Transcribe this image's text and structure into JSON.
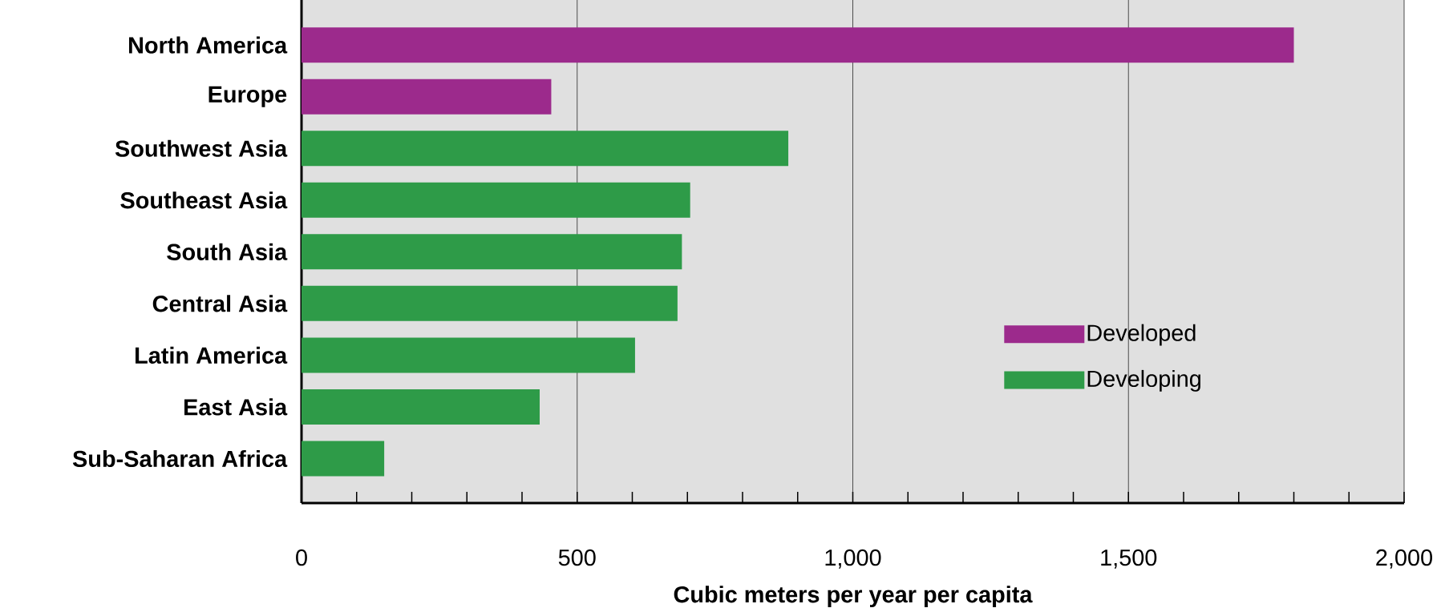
{
  "chart_data": {
    "type": "bar",
    "orientation": "horizontal",
    "stacked": false,
    "categories": [
      "North America",
      "Europe",
      "Southwest Asia",
      "Southeast Asia",
      "South Asia",
      "Central Asia",
      "Latin America",
      "East Asia",
      "Sub-Saharan Africa"
    ],
    "series": [
      {
        "name": "Developed",
        "color": "#9c2a8c",
        "values": [
          1800,
          453,
          null,
          null,
          null,
          null,
          null,
          null,
          null
        ]
      },
      {
        "name": "Developing",
        "color": "#2e9b48",
        "values": [
          null,
          null,
          883,
          705,
          690,
          682,
          605,
          432,
          150
        ]
      }
    ],
    "xlabel": "Cubic meters per year per capita",
    "xlim": [
      0,
      2000
    ],
    "xticks": [
      {
        "value": 0,
        "label": "0"
      },
      {
        "value": 100,
        "label": null
      },
      {
        "value": 200,
        "label": null
      },
      {
        "value": 300,
        "label": null
      },
      {
        "value": 400,
        "label": null
      },
      {
        "value": 500,
        "label": "500"
      },
      {
        "value": 600,
        "label": null
      },
      {
        "value": 700,
        "label": null
      },
      {
        "value": 800,
        "label": null
      },
      {
        "value": 900,
        "label": null
      },
      {
        "value": 1000,
        "label": "1,000"
      },
      {
        "value": 1100,
        "label": null
      },
      {
        "value": 1200,
        "label": null
      },
      {
        "value": 1300,
        "label": null
      },
      {
        "value": 1400,
        "label": null
      },
      {
        "value": 1500,
        "label": "1,500"
      },
      {
        "value": 1600,
        "label": null
      },
      {
        "value": 1700,
        "label": null
      },
      {
        "value": 1800,
        "label": null
      },
      {
        "value": 1900,
        "label": null
      },
      {
        "value": 2000,
        "label": "2,000"
      }
    ],
    "grid": "x",
    "legend": "right"
  }
}
